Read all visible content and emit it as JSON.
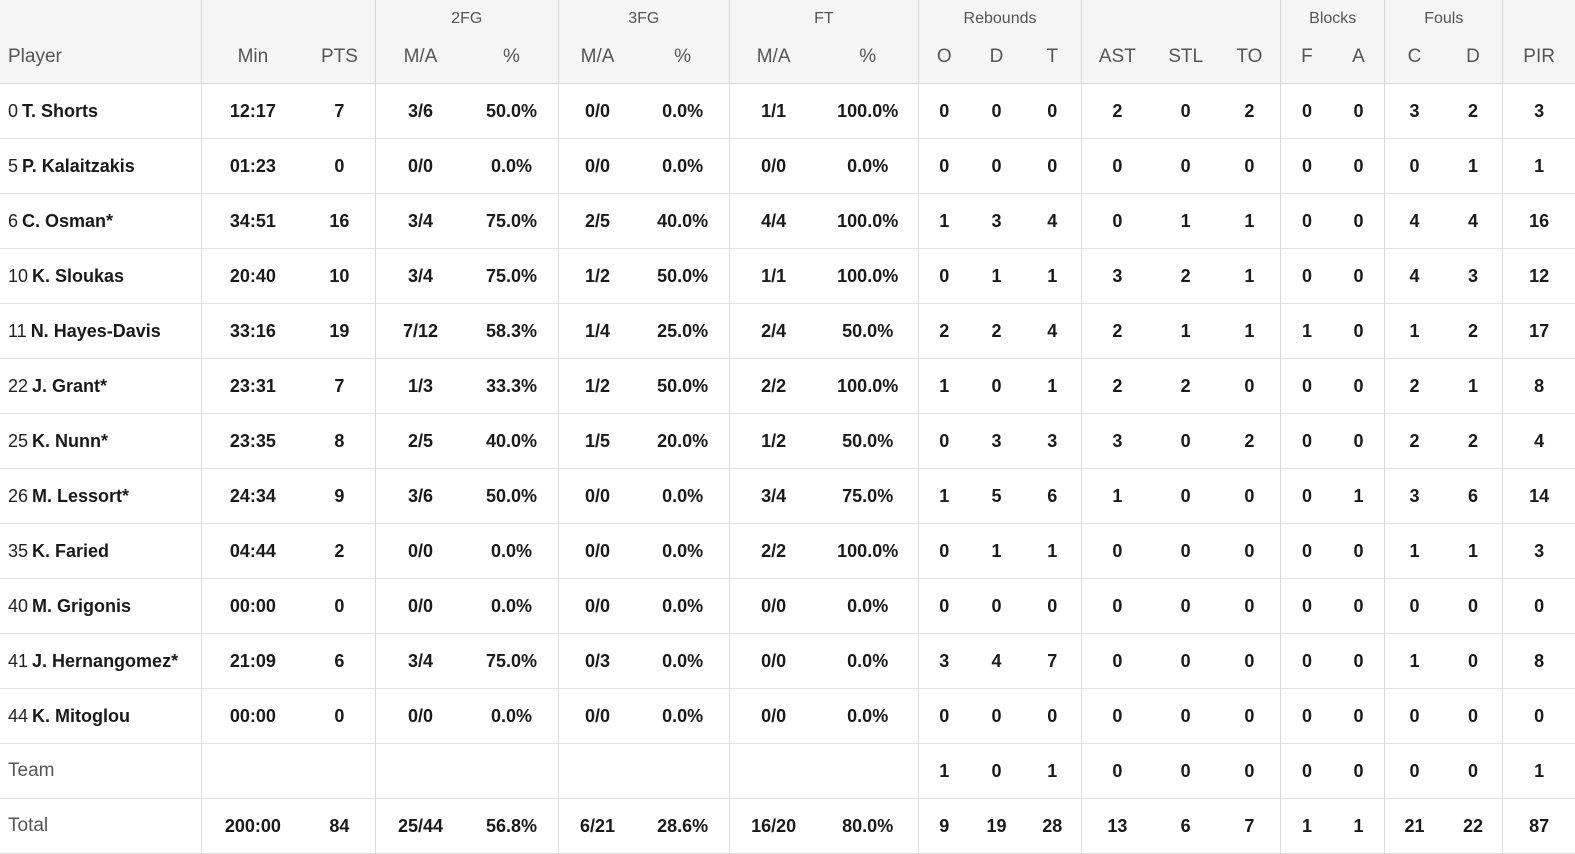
{
  "headers": {
    "groups": {
      "fg2": "2FG",
      "fg3": "3FG",
      "ft": "FT",
      "rebounds": "Rebounds",
      "blocks": "Blocks",
      "fouls": "Fouls"
    },
    "columns": {
      "player": "Player",
      "min": "Min",
      "pts": "PTS",
      "fg2_ma": "M/A",
      "fg2_pct": "%",
      "fg3_ma": "M/A",
      "fg3_pct": "%",
      "ft_ma": "M/A",
      "ft_pct": "%",
      "reb_o": "O",
      "reb_d": "D",
      "reb_t": "T",
      "ast": "AST",
      "stl": "STL",
      "to": "TO",
      "blk_f": "F",
      "blk_a": "A",
      "foul_c": "C",
      "foul_d": "D",
      "pir": "PIR"
    }
  },
  "players": [
    {
      "num": "0",
      "name": "T. Shorts",
      "min": "12:17",
      "pts": "7",
      "fg2_ma": "3/6",
      "fg2_pct": "50.0%",
      "fg3_ma": "0/0",
      "fg3_pct": "0.0%",
      "ft_ma": "1/1",
      "ft_pct": "100.0%",
      "reb_o": "0",
      "reb_d": "0",
      "reb_t": "0",
      "ast": "2",
      "stl": "0",
      "to": "2",
      "blk_f": "0",
      "blk_a": "0",
      "foul_c": "3",
      "foul_d": "2",
      "pir": "3"
    },
    {
      "num": "5",
      "name": "P. Kalaitzakis",
      "min": "01:23",
      "pts": "0",
      "fg2_ma": "0/0",
      "fg2_pct": "0.0%",
      "fg3_ma": "0/0",
      "fg3_pct": "0.0%",
      "ft_ma": "0/0",
      "ft_pct": "0.0%",
      "reb_o": "0",
      "reb_d": "0",
      "reb_t": "0",
      "ast": "0",
      "stl": "0",
      "to": "0",
      "blk_f": "0",
      "blk_a": "0",
      "foul_c": "0",
      "foul_d": "1",
      "pir": "1"
    },
    {
      "num": "6",
      "name": "C. Osman*",
      "min": "34:51",
      "pts": "16",
      "fg2_ma": "3/4",
      "fg2_pct": "75.0%",
      "fg3_ma": "2/5",
      "fg3_pct": "40.0%",
      "ft_ma": "4/4",
      "ft_pct": "100.0%",
      "reb_o": "1",
      "reb_d": "3",
      "reb_t": "4",
      "ast": "0",
      "stl": "1",
      "to": "1",
      "blk_f": "0",
      "blk_a": "0",
      "foul_c": "4",
      "foul_d": "4",
      "pir": "16"
    },
    {
      "num": "10",
      "name": "K. Sloukas",
      "min": "20:40",
      "pts": "10",
      "fg2_ma": "3/4",
      "fg2_pct": "75.0%",
      "fg3_ma": "1/2",
      "fg3_pct": "50.0%",
      "ft_ma": "1/1",
      "ft_pct": "100.0%",
      "reb_o": "0",
      "reb_d": "1",
      "reb_t": "1",
      "ast": "3",
      "stl": "2",
      "to": "1",
      "blk_f": "0",
      "blk_a": "0",
      "foul_c": "4",
      "foul_d": "3",
      "pir": "12"
    },
    {
      "num": "11",
      "name": "N. Hayes-Davis",
      "min": "33:16",
      "pts": "19",
      "fg2_ma": "7/12",
      "fg2_pct": "58.3%",
      "fg3_ma": "1/4",
      "fg3_pct": "25.0%",
      "ft_ma": "2/4",
      "ft_pct": "50.0%",
      "reb_o": "2",
      "reb_d": "2",
      "reb_t": "4",
      "ast": "2",
      "stl": "1",
      "to": "1",
      "blk_f": "1",
      "blk_a": "0",
      "foul_c": "1",
      "foul_d": "2",
      "pir": "17"
    },
    {
      "num": "22",
      "name": "J. Grant*",
      "min": "23:31",
      "pts": "7",
      "fg2_ma": "1/3",
      "fg2_pct": "33.3%",
      "fg3_ma": "1/2",
      "fg3_pct": "50.0%",
      "ft_ma": "2/2",
      "ft_pct": "100.0%",
      "reb_o": "1",
      "reb_d": "0",
      "reb_t": "1",
      "ast": "2",
      "stl": "2",
      "to": "0",
      "blk_f": "0",
      "blk_a": "0",
      "foul_c": "2",
      "foul_d": "1",
      "pir": "8"
    },
    {
      "num": "25",
      "name": "K. Nunn*",
      "min": "23:35",
      "pts": "8",
      "fg2_ma": "2/5",
      "fg2_pct": "40.0%",
      "fg3_ma": "1/5",
      "fg3_pct": "20.0%",
      "ft_ma": "1/2",
      "ft_pct": "50.0%",
      "reb_o": "0",
      "reb_d": "3",
      "reb_t": "3",
      "ast": "3",
      "stl": "0",
      "to": "2",
      "blk_f": "0",
      "blk_a": "0",
      "foul_c": "2",
      "foul_d": "2",
      "pir": "4"
    },
    {
      "num": "26",
      "name": "M. Lessort*",
      "min": "24:34",
      "pts": "9",
      "fg2_ma": "3/6",
      "fg2_pct": "50.0%",
      "fg3_ma": "0/0",
      "fg3_pct": "0.0%",
      "ft_ma": "3/4",
      "ft_pct": "75.0%",
      "reb_o": "1",
      "reb_d": "5",
      "reb_t": "6",
      "ast": "1",
      "stl": "0",
      "to": "0",
      "blk_f": "0",
      "blk_a": "1",
      "foul_c": "3",
      "foul_d": "6",
      "pir": "14"
    },
    {
      "num": "35",
      "name": "K. Faried",
      "min": "04:44",
      "pts": "2",
      "fg2_ma": "0/0",
      "fg2_pct": "0.0%",
      "fg3_ma": "0/0",
      "fg3_pct": "0.0%",
      "ft_ma": "2/2",
      "ft_pct": "100.0%",
      "reb_o": "0",
      "reb_d": "1",
      "reb_t": "1",
      "ast": "0",
      "stl": "0",
      "to": "0",
      "blk_f": "0",
      "blk_a": "0",
      "foul_c": "1",
      "foul_d": "1",
      "pir": "3"
    },
    {
      "num": "40",
      "name": "M. Grigonis",
      "min": "00:00",
      "pts": "0",
      "fg2_ma": "0/0",
      "fg2_pct": "0.0%",
      "fg3_ma": "0/0",
      "fg3_pct": "0.0%",
      "ft_ma": "0/0",
      "ft_pct": "0.0%",
      "reb_o": "0",
      "reb_d": "0",
      "reb_t": "0",
      "ast": "0",
      "stl": "0",
      "to": "0",
      "blk_f": "0",
      "blk_a": "0",
      "foul_c": "0",
      "foul_d": "0",
      "pir": "0"
    },
    {
      "num": "41",
      "name": "J. Hernangomez*",
      "min": "21:09",
      "pts": "6",
      "fg2_ma": "3/4",
      "fg2_pct": "75.0%",
      "fg3_ma": "0/3",
      "fg3_pct": "0.0%",
      "ft_ma": "0/0",
      "ft_pct": "0.0%",
      "reb_o": "3",
      "reb_d": "4",
      "reb_t": "7",
      "ast": "0",
      "stl": "0",
      "to": "0",
      "blk_f": "0",
      "blk_a": "0",
      "foul_c": "1",
      "foul_d": "0",
      "pir": "8"
    },
    {
      "num": "44",
      "name": "K. Mitoglou",
      "min": "00:00",
      "pts": "0",
      "fg2_ma": "0/0",
      "fg2_pct": "0.0%",
      "fg3_ma": "0/0",
      "fg3_pct": "0.0%",
      "ft_ma": "0/0",
      "ft_pct": "0.0%",
      "reb_o": "0",
      "reb_d": "0",
      "reb_t": "0",
      "ast": "0",
      "stl": "0",
      "to": "0",
      "blk_f": "0",
      "blk_a": "0",
      "foul_c": "0",
      "foul_d": "0",
      "pir": "0"
    }
  ],
  "team": {
    "label": "Team",
    "min": "",
    "pts": "",
    "fg2_ma": "",
    "fg2_pct": "",
    "fg3_ma": "",
    "fg3_pct": "",
    "ft_ma": "",
    "ft_pct": "",
    "reb_o": "1",
    "reb_d": "0",
    "reb_t": "1",
    "ast": "0",
    "stl": "0",
    "to": "0",
    "blk_f": "0",
    "blk_a": "0",
    "foul_c": "0",
    "foul_d": "0",
    "pir": "1"
  },
  "total": {
    "label": "Total",
    "min": "200:00",
    "pts": "84",
    "fg2_ma": "25/44",
    "fg2_pct": "56.8%",
    "fg3_ma": "6/21",
    "fg3_pct": "28.6%",
    "ft_ma": "16/20",
    "ft_pct": "80.0%",
    "reb_o": "9",
    "reb_d": "19",
    "reb_t": "28",
    "ast": "13",
    "stl": "6",
    "to": "7",
    "blk_f": "1",
    "blk_a": "1",
    "foul_c": "21",
    "foul_d": "22",
    "pir": "87"
  }
}
